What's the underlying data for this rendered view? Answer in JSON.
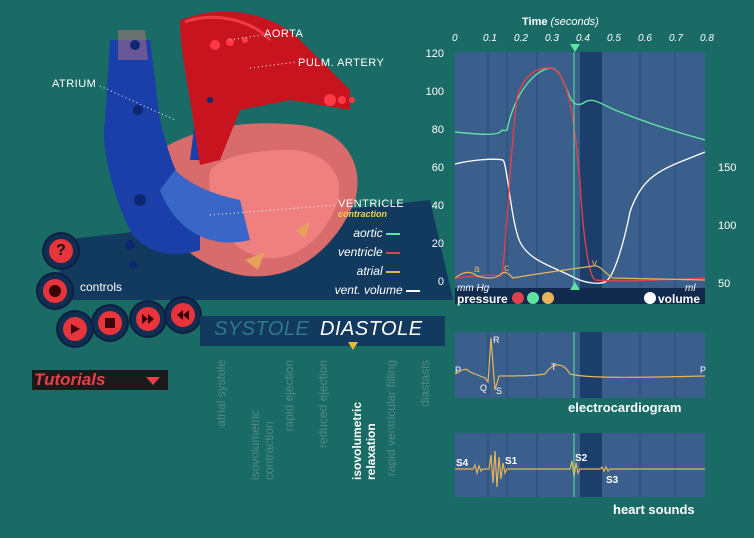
{
  "heart": {
    "labels": {
      "aorta": "AORTA",
      "pulm_artery": "PULM. ARTERY",
      "atrium": "ATRIUM",
      "ventricle": "VENTRICLE",
      "contraction": "contraction"
    }
  },
  "controls": {
    "help_label": "?",
    "controls_label": "controls"
  },
  "tutorials": {
    "label": "Tutorials"
  },
  "phase_bar": {
    "systole": "SYSTOLE",
    "diastole": "DIASTOLE"
  },
  "phases": [
    {
      "label": "atrial systole",
      "active": false
    },
    {
      "label": "isovolumetric contraction",
      "active": false
    },
    {
      "label": "rapid ejection",
      "active": false
    },
    {
      "label": "reduced ejection",
      "active": false
    },
    {
      "label": "isovolumetric relaxation",
      "active": true
    },
    {
      "label": "rapid ventricular filling",
      "active": false
    },
    {
      "label": "diastasis",
      "active": false
    }
  ],
  "time_axis": {
    "title": "Time",
    "unit": "(seconds)",
    "ticks": [
      "0",
      "0.1",
      "0.2",
      "0.3",
      "0.4",
      "0.5",
      "0.6",
      "0.7",
      "0.8"
    ]
  },
  "pressure_axis": {
    "ticks": [
      "120",
      "100",
      "80",
      "60",
      "40",
      "20",
      "0"
    ],
    "unit": "mm Hg"
  },
  "volume_axis": {
    "ticks": [
      "150",
      "100",
      "50"
    ],
    "unit": "ml"
  },
  "legend": {
    "aortic": "aortic",
    "ventricle": "ventricle",
    "atrial": "atrial",
    "vent_volume": "vent. volume",
    "pressure": "pressure",
    "volume": "volume"
  },
  "waves": {
    "a": "a",
    "c": "c",
    "v": "v"
  },
  "ecg": {
    "title": "electrocardiogram",
    "P": "P",
    "Q": "Q",
    "R": "R",
    "S": "S",
    "T": "T",
    "P2": "P"
  },
  "sounds": {
    "title": "heart sounds",
    "s1": "S1",
    "s2": "S2",
    "s3": "S3",
    "s4": "S4"
  },
  "colors": {
    "aortic": "#5fe3a2",
    "ventricle": "#e0404a",
    "atrial": "#e8b45a",
    "volume": "#ffffff",
    "panel": "#3a5f8c",
    "background": "#1a6b66"
  }
}
